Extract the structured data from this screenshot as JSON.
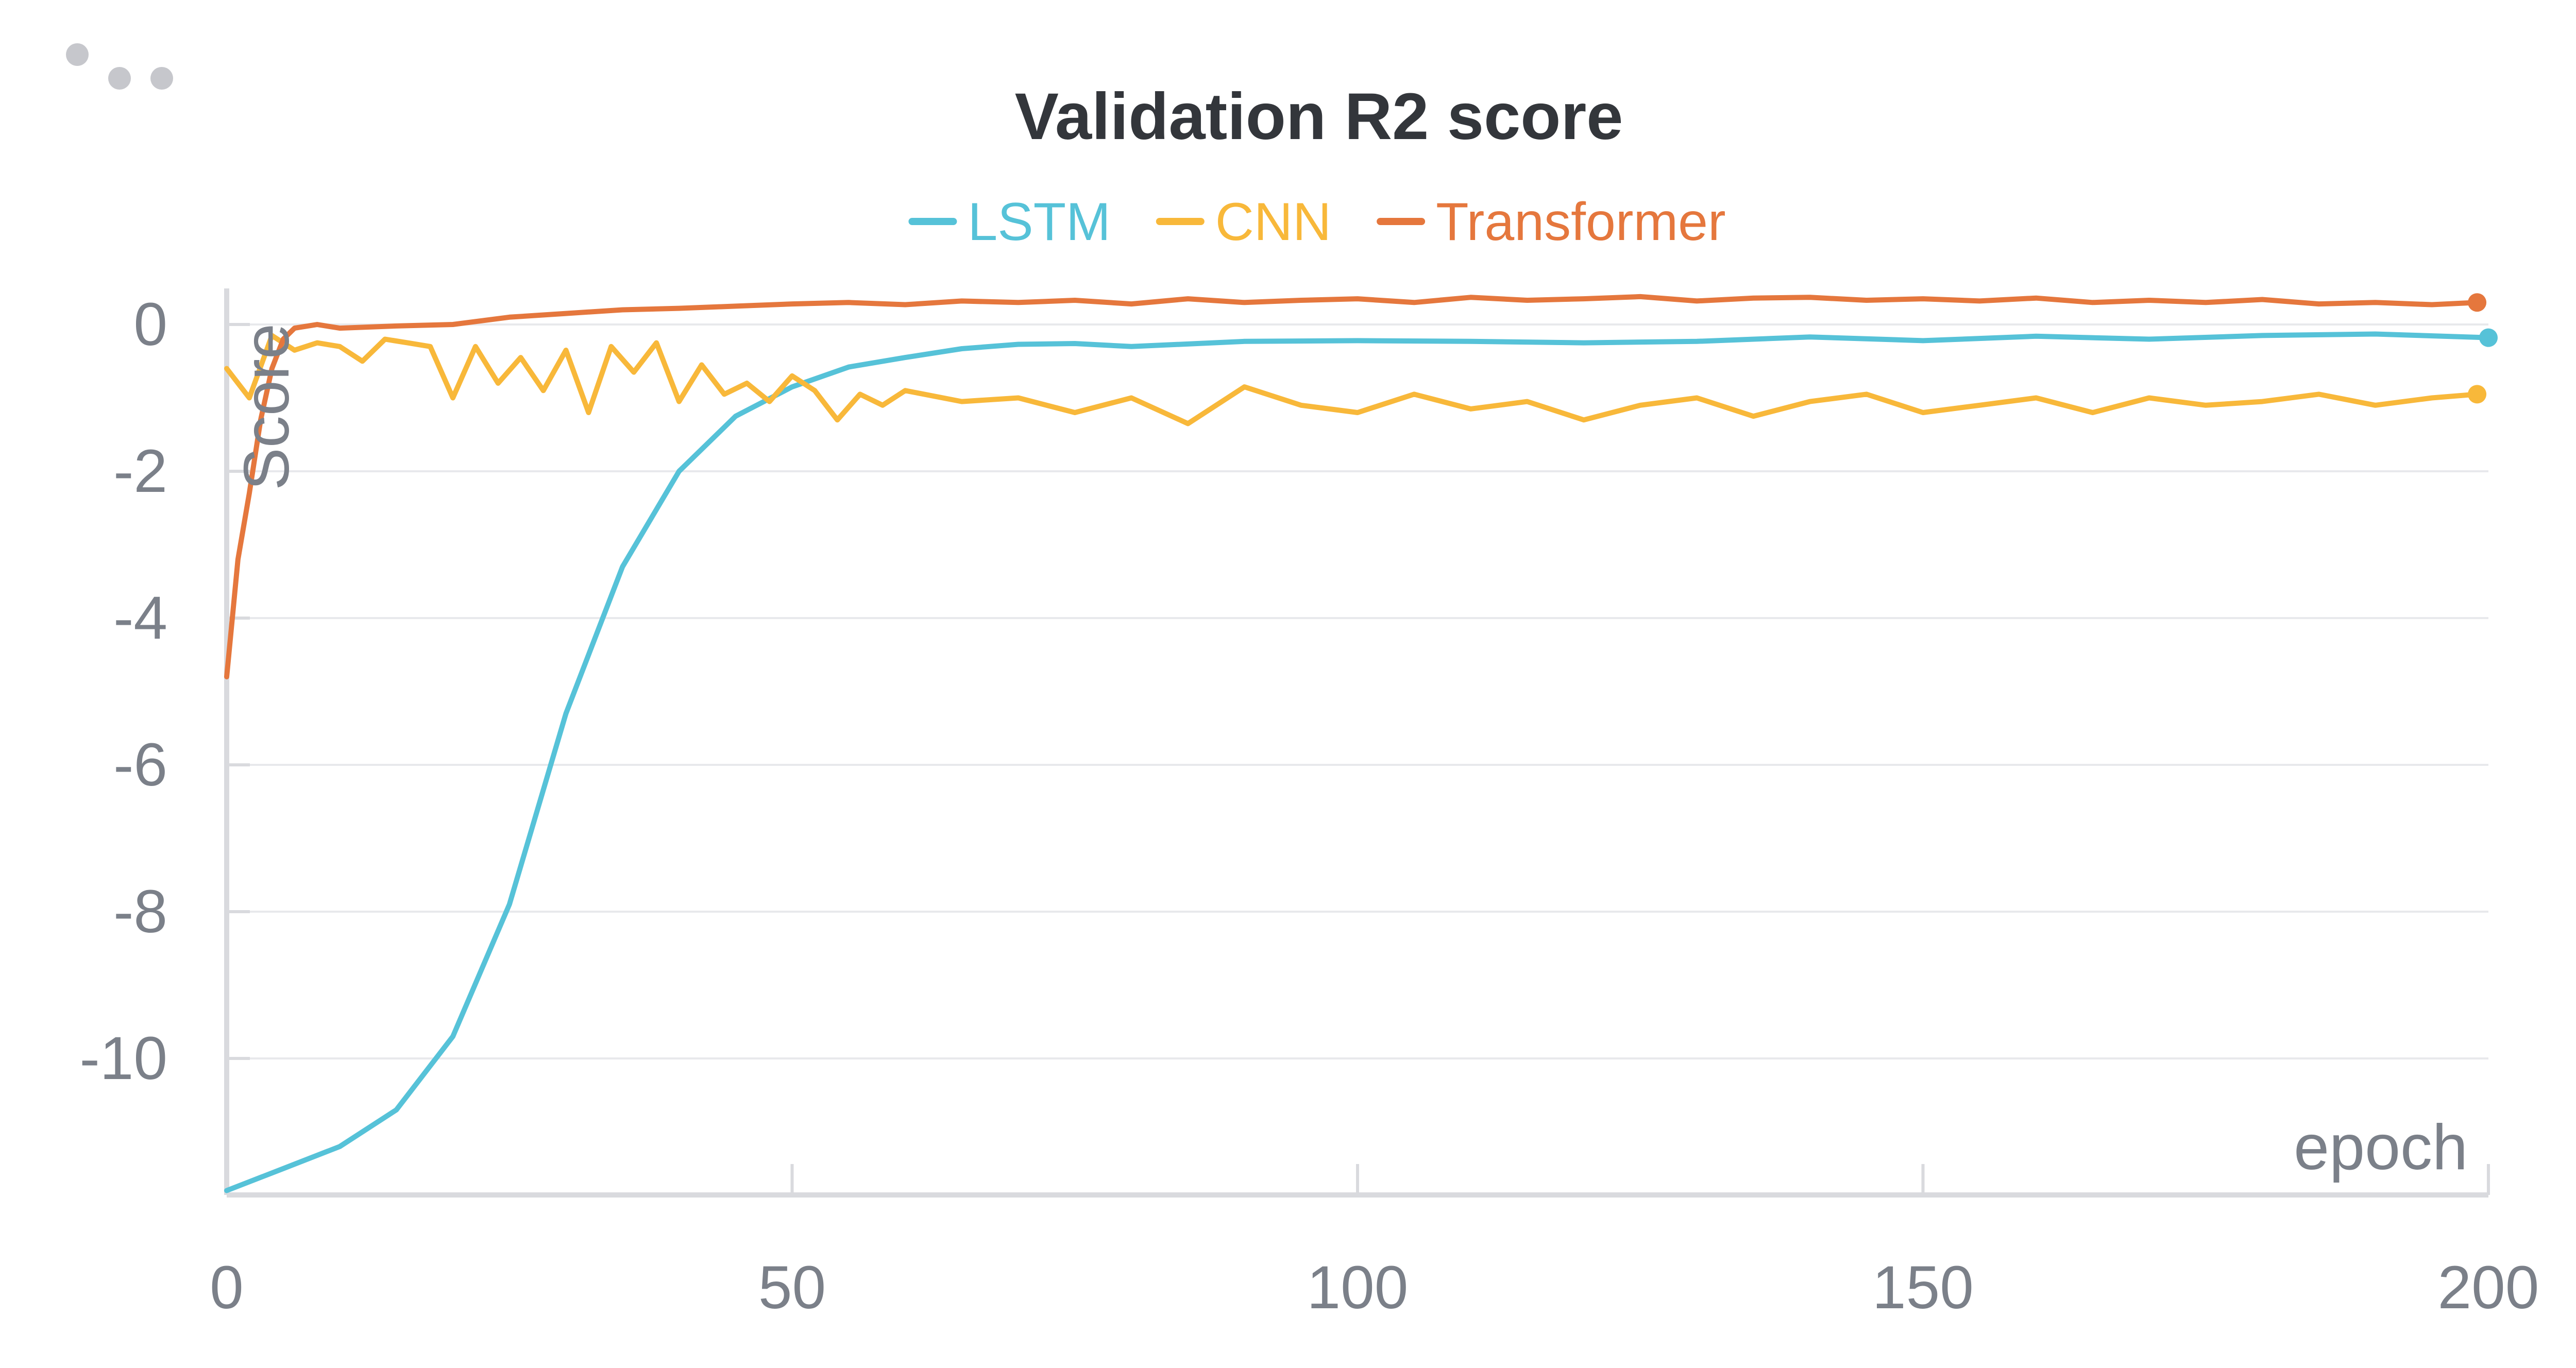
{
  "panel": {
    "menu_icon": "more-dots-icon"
  },
  "chart_data": {
    "type": "line",
    "title": "Validation R2 score",
    "xlabel": "epoch",
    "ylabel": "Score",
    "xlim": [
      0,
      200
    ],
    "ylim": [
      -11.8,
      0.5
    ],
    "x_ticks": [
      0,
      50,
      100,
      150,
      200
    ],
    "y_ticks": [
      0,
      -2,
      -4,
      -6,
      -8,
      -10
    ],
    "x_tick_labels": [
      "0",
      "50",
      "100",
      "150",
      "200"
    ],
    "y_tick_labels": [
      "0",
      "-2",
      "-4",
      "-6",
      "-8",
      "-10"
    ],
    "grid": true,
    "legend_position": "top-center",
    "series": [
      {
        "name": "LSTM",
        "color": "#56c2d8",
        "x": [
          0,
          5,
          10,
          15,
          20,
          25,
          30,
          35,
          40,
          45,
          50,
          55,
          60,
          65,
          70,
          75,
          80,
          90,
          100,
          110,
          120,
          130,
          140,
          150,
          160,
          170,
          180,
          190,
          200
        ],
        "y": [
          -11.8,
          -11.5,
          -11.2,
          -10.7,
          -9.7,
          -7.9,
          -5.3,
          -3.3,
          -2.0,
          -1.25,
          -0.85,
          -0.58,
          -0.45,
          -0.33,
          -0.27,
          -0.26,
          -0.3,
          -0.23,
          -0.22,
          -0.23,
          -0.25,
          -0.23,
          -0.17,
          -0.22,
          -0.16,
          -0.2,
          -0.15,
          -0.13,
          -0.18
        ]
      },
      {
        "name": "CNN",
        "color": "#f8b83a",
        "x": [
          0,
          2,
          4,
          6,
          8,
          10,
          12,
          14,
          16,
          18,
          20,
          22,
          24,
          26,
          28,
          30,
          32,
          34,
          36,
          38,
          40,
          42,
          44,
          46,
          48,
          50,
          52,
          54,
          56,
          58,
          60,
          65,
          70,
          75,
          80,
          85,
          90,
          95,
          100,
          105,
          110,
          115,
          120,
          125,
          130,
          135,
          140,
          145,
          150,
          155,
          160,
          165,
          170,
          175,
          180,
          185,
          190,
          195,
          199
        ],
        "y": [
          -0.6,
          -1.0,
          -0.15,
          -0.35,
          -0.25,
          -0.3,
          -0.5,
          -0.2,
          -0.25,
          -0.3,
          -1.0,
          -0.3,
          -0.8,
          -0.45,
          -0.9,
          -0.35,
          -1.2,
          -0.3,
          -0.65,
          -0.25,
          -1.05,
          -0.55,
          -0.95,
          -0.8,
          -1.05,
          -0.7,
          -0.9,
          -1.3,
          -0.95,
          -1.1,
          -0.9,
          -1.05,
          -1.0,
          -1.2,
          -1.0,
          -1.35,
          -0.85,
          -1.1,
          -1.2,
          -0.95,
          -1.15,
          -1.05,
          -1.3,
          -1.1,
          -1.0,
          -1.25,
          -1.05,
          -0.95,
          -1.2,
          -1.1,
          -1.0,
          -1.2,
          -1.0,
          -1.1,
          -1.05,
          -0.95,
          -1.1,
          -1.0,
          -0.95
        ]
      },
      {
        "name": "Transformer",
        "color": "#e5773d",
        "x": [
          0,
          1,
          2,
          3,
          4,
          5,
          6,
          8,
          10,
          15,
          20,
          25,
          30,
          35,
          40,
          45,
          50,
          55,
          60,
          65,
          70,
          75,
          80,
          85,
          90,
          95,
          100,
          105,
          110,
          115,
          120,
          125,
          130,
          135,
          140,
          145,
          150,
          155,
          160,
          165,
          170,
          175,
          180,
          185,
          190,
          195,
          199
        ],
        "y": [
          -4.8,
          -3.2,
          -2.3,
          -1.3,
          -0.6,
          -0.2,
          -0.05,
          0.0,
          -0.05,
          -0.02,
          0.0,
          0.1,
          0.15,
          0.2,
          0.22,
          0.25,
          0.28,
          0.3,
          0.27,
          0.32,
          0.3,
          0.33,
          0.28,
          0.35,
          0.3,
          0.33,
          0.35,
          0.3,
          0.37,
          0.33,
          0.35,
          0.38,
          0.32,
          0.36,
          0.37,
          0.33,
          0.35,
          0.32,
          0.36,
          0.3,
          0.33,
          0.3,
          0.34,
          0.28,
          0.3,
          0.27,
          0.3
        ]
      }
    ]
  }
}
